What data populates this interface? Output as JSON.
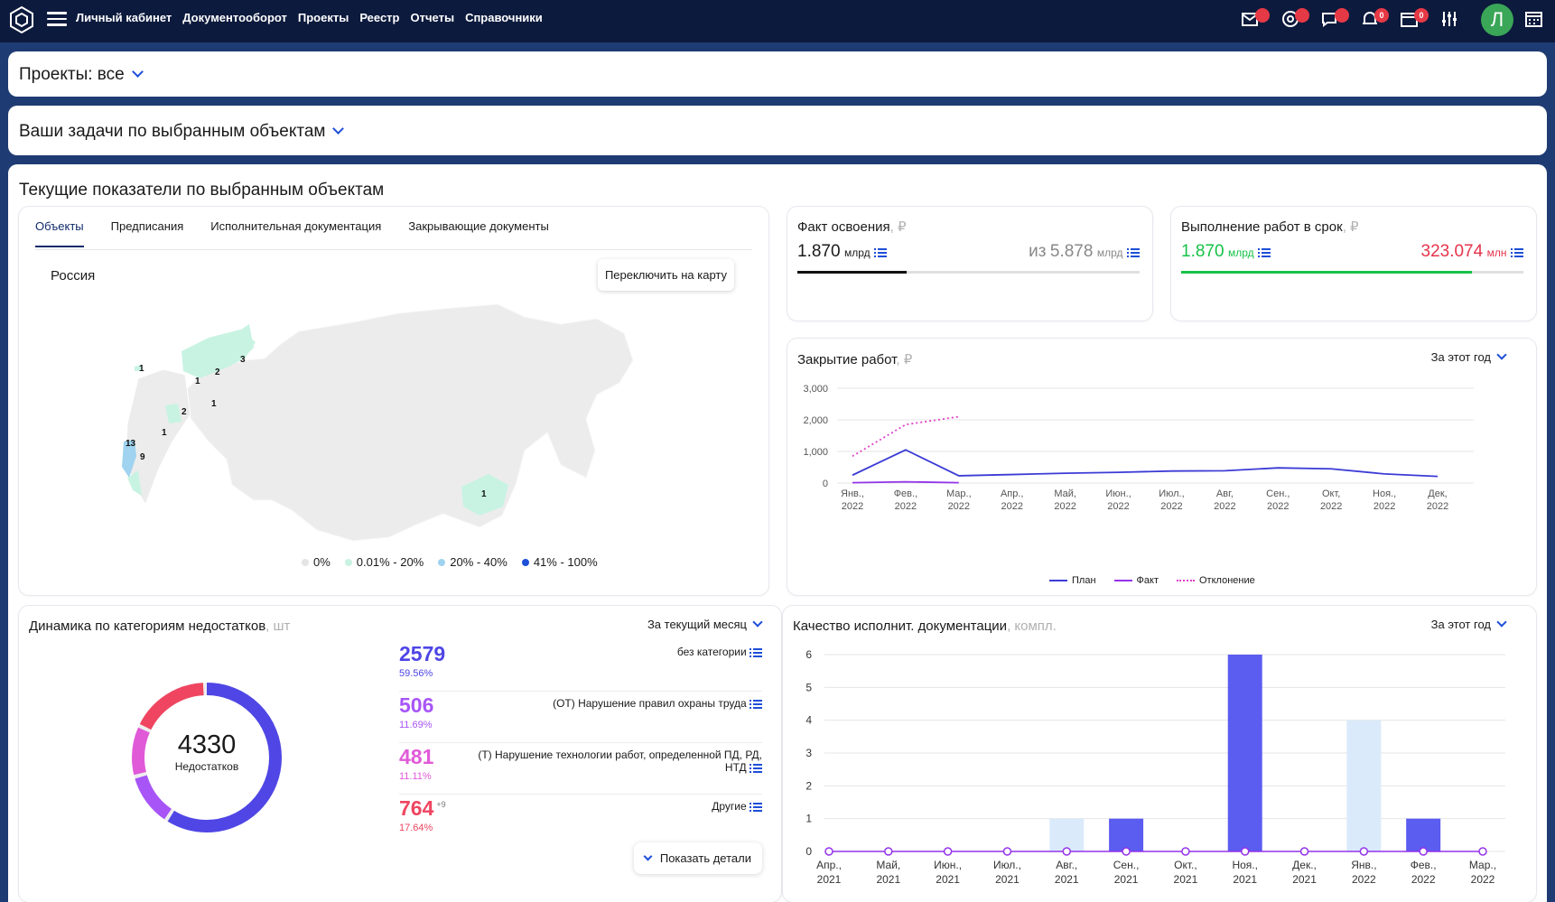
{
  "topbar": {
    "menu": [
      "Личный кабинет",
      "Документооборот",
      "Проекты",
      "Реестр",
      "Отчеты",
      "Справочники"
    ],
    "icons": [
      {
        "name": "mail-icon",
        "badge": ""
      },
      {
        "name": "at-mention-icon",
        "badge": ""
      },
      {
        "name": "chat-icon",
        "badge": ""
      },
      {
        "name": "bell-icon",
        "badge": "0"
      },
      {
        "name": "calendar-icon",
        "badge": "0"
      },
      {
        "name": "settings-sliders-icon",
        "badge": ""
      },
      {
        "name": "calendar-grid-icon",
        "badge": ""
      }
    ],
    "avatar": "Л",
    "avatar_color": "#3aa657"
  },
  "projects": {
    "label": "Проекты: все"
  },
  "tasks": {
    "label": "Ваши задачи по выбранным объектам"
  },
  "indicators": {
    "title": "Текущие показатели по выбранным объектам",
    "tabs": [
      "Объекты",
      "Предписания",
      "Исполнительная документация",
      "Закрывающие документы"
    ],
    "active_tab": 0,
    "map": {
      "region": "Россия",
      "switch_button": "Переключить на карту",
      "markers": [
        "1",
        "2",
        "3",
        "1",
        "1",
        "2",
        "1",
        "13",
        "9",
        "1"
      ],
      "legend": [
        {
          "label": "0%",
          "color": "#e4e4e4"
        },
        {
          "label": "0.01% - 20%",
          "color": "#c8f3e3"
        },
        {
          "label": "20% - 40%",
          "color": "#9fd3ef"
        },
        {
          "label": "41% - 100%",
          "color": "#1e4fd8"
        }
      ]
    }
  },
  "fact": {
    "title": "Факт освоения",
    "currency": "₽",
    "value": "1.870",
    "value_unit": "млрд",
    "total_prefix": "из",
    "total": "5.878",
    "total_unit": "млрд",
    "progress": 0.32
  },
  "ontime": {
    "title": "Выполнение работ в срок",
    "currency": "₽",
    "value": "1.870",
    "value_unit": "млрд",
    "late": "323.074",
    "late_unit": "млн",
    "progress": 0.85
  },
  "closing": {
    "title": "Закрытие работ",
    "currency": "₽",
    "period": "За этот год",
    "chart_data": {
      "type": "line",
      "categories": [
        "Янв., 2022",
        "Фев., 2022",
        "Мар., 2022",
        "Апр., 2022",
        "Май, 2022",
        "Июн., 2022",
        "Июл., 2022",
        "Авг, 2022",
        "Сен., 2022",
        "Окт, 2022",
        "Ноя., 2022",
        "Дек, 2022"
      ],
      "yticks": [
        "0",
        "1,000",
        "2,000",
        "3,000"
      ],
      "ylim": [
        0,
        3000
      ],
      "series": [
        {
          "name": "План",
          "color": "#3b3bd6",
          "dash": false,
          "values": [
            250,
            1050,
            230,
            270,
            310,
            340,
            380,
            390,
            480,
            450,
            290,
            210
          ]
        },
        {
          "name": "Факт",
          "color": "#9333ea",
          "dash": false,
          "values": [
            10,
            40,
            10,
            null,
            null,
            null,
            null,
            null,
            null,
            null,
            null,
            null
          ]
        },
        {
          "name": "Отклонение",
          "color": "#e040c8",
          "dash": true,
          "values": [
            850,
            1850,
            2100,
            null,
            null,
            null,
            null,
            null,
            null,
            null,
            null,
            null
          ]
        }
      ]
    }
  },
  "defects": {
    "title": "Динамика по категориям недостатков",
    "unit": "шт",
    "period": "За текущий месяц",
    "total": "4330",
    "total_label": "Недостатков",
    "items": [
      {
        "value": "2579",
        "pct": "59.56%",
        "extra": "",
        "label": "без категории",
        "color": "#4f46e5",
        "share": 59.56
      },
      {
        "value": "506",
        "pct": "11.69%",
        "extra": "",
        "label": "(ОТ) Нарушение правил охраны труда",
        "color": "#a855f7",
        "share": 11.69
      },
      {
        "value": "481",
        "pct": "11.11%",
        "extra": "",
        "label": "(Т) Нарушение технологии работ, определенной ПД, РД, НТД",
        "color": "#e05ad8",
        "share": 11.11
      },
      {
        "value": "764",
        "pct": "17.64%",
        "extra": "+9",
        "label": "Другие",
        "color": "#ef4560",
        "share": 17.64
      }
    ],
    "details_button": "Показать детали"
  },
  "quality": {
    "title": "Качество исполнит. документации",
    "unit": "компл.",
    "period": "За этот год",
    "chart_data": {
      "type": "bar",
      "categories": [
        "Апр., 2021",
        "Май, 2021",
        "Июн., 2021",
        "Июл., 2021",
        "Авг., 2021",
        "Сен., 2021",
        "Окт., 2021",
        "Ноя., 2021",
        "Дек., 2021",
        "Янв., 2022",
        "Фев., 2022",
        "Мар., 2022"
      ],
      "yticks": [
        "0",
        "1",
        "2",
        "3",
        "4",
        "5",
        "6"
      ],
      "ylim": [
        0,
        6
      ],
      "series": [
        {
          "name": "",
          "color": "#dbeafa",
          "values": [
            0,
            0,
            0,
            0,
            1,
            0,
            0,
            0,
            0,
            4,
            0,
            0
          ]
        },
        {
          "name": "",
          "color": "#5b5cf0",
          "values": [
            0,
            0,
            0,
            0,
            0,
            1,
            0,
            6,
            0,
            0,
            1,
            0
          ]
        }
      ],
      "line_values": [
        0,
        0,
        0,
        0,
        0,
        0,
        0,
        0,
        0,
        0,
        0,
        0
      ]
    }
  }
}
